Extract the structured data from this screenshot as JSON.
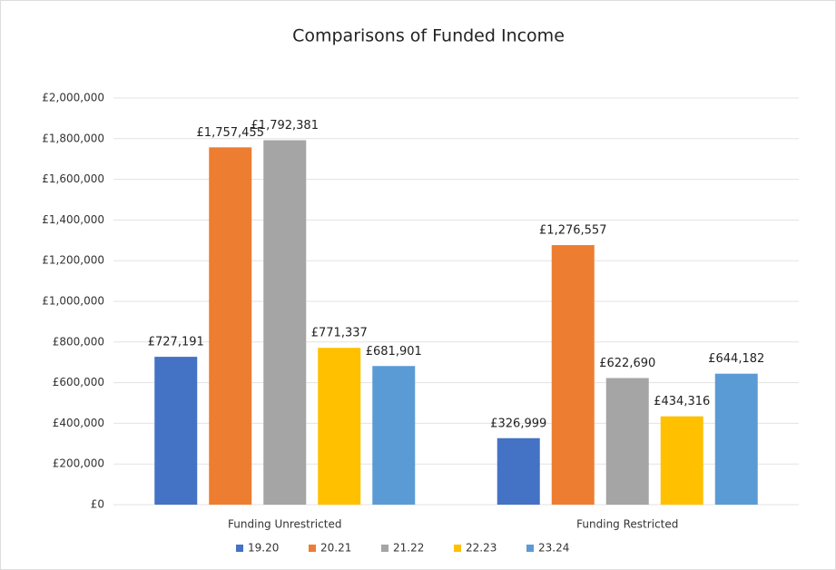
{
  "chart_data": {
    "type": "bar",
    "title": "Comparisons of Funded Income",
    "categories": [
      "Funding Unrestricted",
      "Funding Restricted"
    ],
    "series": [
      {
        "name": "19.20",
        "color": "#4472c4",
        "values": [
          727191,
          326999
        ],
        "value_labels": [
          "£727,191",
          "£326,999"
        ]
      },
      {
        "name": "20.21",
        "color": "#ed7d31",
        "values": [
          1757455,
          1276557
        ],
        "value_labels": [
          "£1,757,455",
          "£1,276,557"
        ]
      },
      {
        "name": "21.22",
        "color": "#a5a5a5",
        "values": [
          1792381,
          622690
        ],
        "value_labels": [
          "£1,792,381",
          "£622,690"
        ]
      },
      {
        "name": "22.23",
        "color": "#ffc000",
        "values": [
          771337,
          434316
        ],
        "value_labels": [
          "£771,337",
          "£434,316"
        ]
      },
      {
        "name": "23.24",
        "color": "#5b9bd5",
        "values": [
          681901,
          644182
        ],
        "value_labels": [
          "£681,901",
          "£644,182"
        ]
      }
    ],
    "ylim": [
      0,
      2000000
    ],
    "yticks": [
      {
        "value": 0,
        "label": "£0"
      },
      {
        "value": 200000,
        "label": "£200,000"
      },
      {
        "value": 400000,
        "label": "£400,000"
      },
      {
        "value": 600000,
        "label": "£600,000"
      },
      {
        "value": 800000,
        "label": "£800,000"
      },
      {
        "value": 1000000,
        "label": "£1,000,000"
      },
      {
        "value": 1200000,
        "label": "£1,200,000"
      },
      {
        "value": 1400000,
        "label": "£1,400,000"
      },
      {
        "value": 1600000,
        "label": "£1,600,000"
      },
      {
        "value": 1800000,
        "label": "£1,800,000"
      },
      {
        "value": 2000000,
        "label": "£2,000,000"
      }
    ],
    "grid": true,
    "legend": "bottom"
  }
}
